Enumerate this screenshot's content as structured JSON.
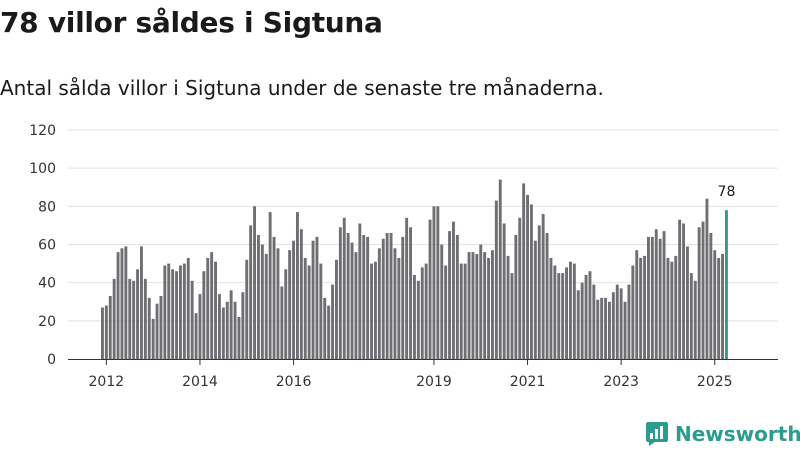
{
  "headline": "78 villor såldes i Sigtuna",
  "subtitle": "Antal sålda villor i Sigtuna under de senaste tre månaderna.",
  "brand": {
    "name": "Newsworthy",
    "logo_icon": "newsworthy-logo-icon"
  },
  "colors": {
    "bar": "#6f6e73",
    "highlight": "#2a9d8f",
    "grid": "#e3e3e3",
    "axis": "#333333"
  },
  "chart_data": {
    "type": "bar",
    "title": "78 villor såldes i Sigtuna",
    "xlabel": "",
    "ylabel": "",
    "ylim": [
      0,
      120
    ],
    "yticks": [
      0,
      20,
      40,
      60,
      80,
      100,
      120
    ],
    "x_start": "2011-12",
    "x_tick_labels": [
      "2012",
      "2014",
      "2016",
      "2019",
      "2021",
      "2023",
      "2025"
    ],
    "highlight_label": "78",
    "values": [
      27,
      28,
      33,
      42,
      56,
      58,
      59,
      42,
      41,
      47,
      59,
      42,
      32,
      21,
      29,
      33,
      49,
      50,
      47,
      46,
      49,
      50,
      53,
      41,
      24,
      34,
      46,
      53,
      56,
      51,
      34,
      27,
      30,
      36,
      30,
      22,
      35,
      52,
      70,
      80,
      65,
      60,
      55,
      77,
      64,
      58,
      38,
      47,
      57,
      62,
      77,
      68,
      53,
      49,
      62,
      64,
      50,
      32,
      28,
      39,
      52,
      69,
      74,
      66,
      61,
      56,
      71,
      65,
      64,
      50,
      51,
      58,
      63,
      66,
      66,
      58,
      53,
      64,
      74,
      69,
      44,
      41,
      48,
      50,
      73,
      80,
      80,
      60,
      49,
      67,
      72,
      65,
      50,
      50,
      56,
      56,
      55,
      60,
      56,
      53,
      57,
      83,
      94,
      71,
      54,
      45,
      65,
      74,
      92,
      86,
      81,
      62,
      70,
      76,
      66,
      53,
      49,
      45,
      45,
      48,
      51,
      50,
      36,
      40,
      44,
      46,
      39,
      31,
      32,
      32,
      30,
      35,
      39,
      37,
      30,
      39,
      49,
      57,
      53,
      54,
      64,
      64,
      68,
      63,
      67,
      53,
      51,
      54,
      73,
      71,
      59,
      45,
      41,
      69,
      72,
      84,
      66,
      57,
      53,
      55,
      78
    ]
  }
}
